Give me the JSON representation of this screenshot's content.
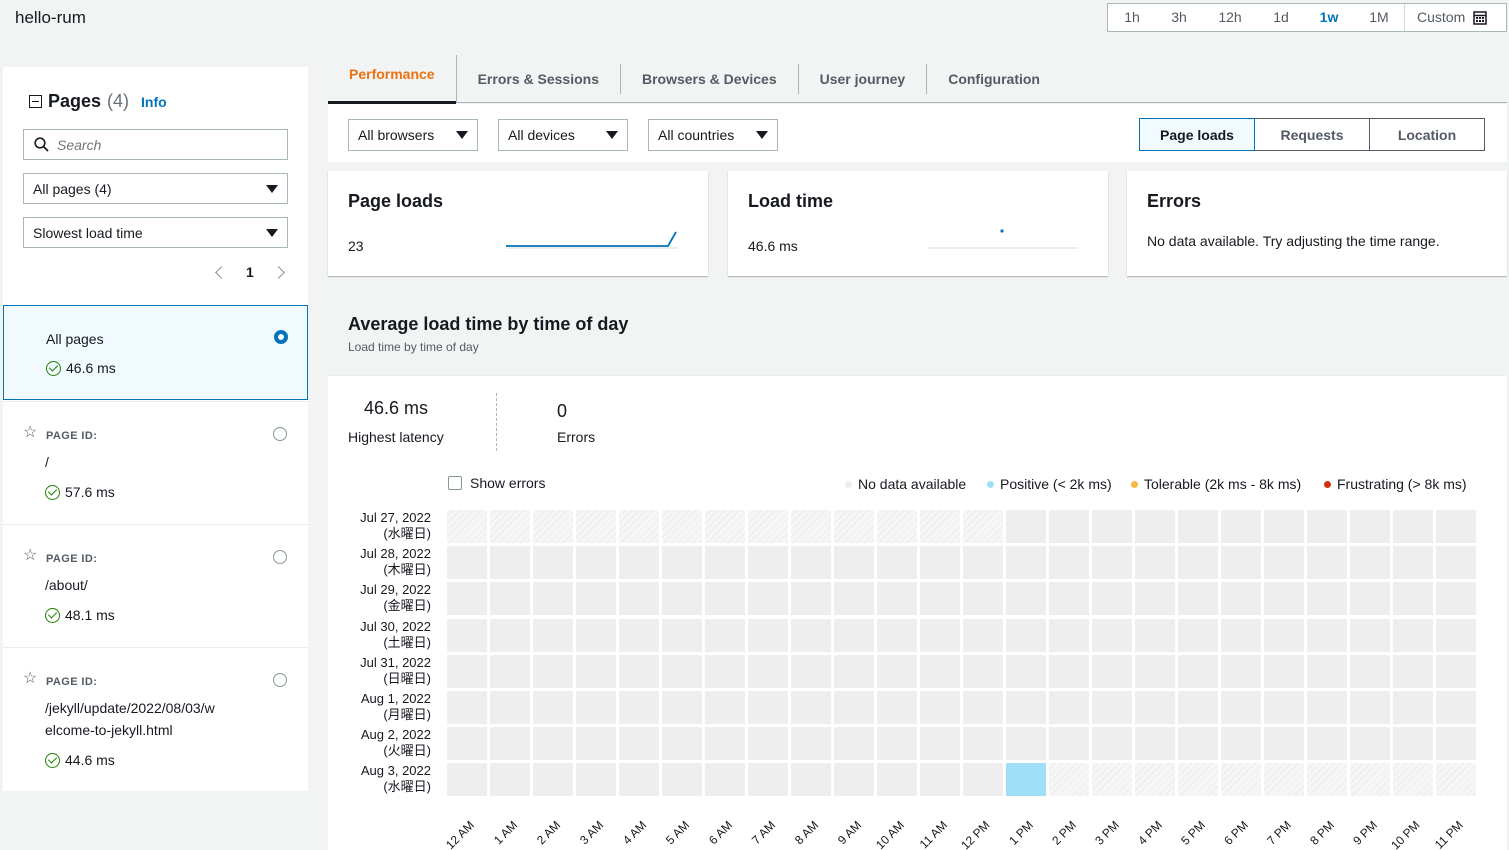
{
  "app": {
    "title": "hello-rum"
  },
  "time_range": {
    "options": [
      "1h",
      "3h",
      "12h",
      "1d",
      "1w",
      "1M"
    ],
    "selected": "1w",
    "custom_label": "Custom"
  },
  "sidebar": {
    "title": "Pages",
    "count": "(4)",
    "info": "Info",
    "search_placeholder": "Search",
    "page_filter": "All pages (4)",
    "sort": "Slowest load time",
    "page_number": "1",
    "items": [
      {
        "label": "All pages",
        "value": "46.6 ms",
        "selected": true
      },
      {
        "pid_label": "PAGE ID:",
        "label": "/",
        "value": "57.6 ms"
      },
      {
        "pid_label": "PAGE ID:",
        "label": "/about/",
        "value": "48.1 ms"
      },
      {
        "pid_label": "PAGE ID:",
        "label": "/jekyll/update/2022/08/03/w",
        "label2": "elcome-to-jekyll.html",
        "value": "44.6 ms"
      }
    ]
  },
  "tabs": [
    "Performance",
    "Errors & Sessions",
    "Browsers & Devices",
    "User journey",
    "Configuration"
  ],
  "active_tab": "Performance",
  "filters": {
    "browsers": "All browsers",
    "devices": "All devices",
    "countries": "All countries",
    "views": [
      "Page loads",
      "Requests",
      "Location"
    ],
    "active_view": "Page loads"
  },
  "cards": {
    "page_loads": {
      "title": "Page loads",
      "value": "23"
    },
    "load_time": {
      "title": "Load time",
      "value": "46.6 ms"
    },
    "errors": {
      "title": "Errors",
      "message": "No data available. Try adjusting the time range."
    }
  },
  "heatmap": {
    "title": "Average load time by time of day",
    "subtitle": "Load time by time of day",
    "highest_latency_value": "46.6 ms",
    "highest_latency_label": "Highest latency",
    "errors_value": "0",
    "errors_label": "Errors",
    "show_errors_label": "Show errors",
    "legend": [
      {
        "label": "No data available",
        "color": "#eaeded"
      },
      {
        "label": "Positive (< 2k ms)",
        "color": "#9fe0f8"
      },
      {
        "label": "Tolerable (2k ms - 8k ms)",
        "color": "#f5b943"
      },
      {
        "label": "Frustrating (> 8k ms)",
        "color": "#d13212"
      }
    ],
    "rows": [
      {
        "date": "Jul 27, 2022",
        "weekday": "(水曜日)"
      },
      {
        "date": "Jul 28, 2022",
        "weekday": "(木曜日)"
      },
      {
        "date": "Jul 29, 2022",
        "weekday": "(金曜日)"
      },
      {
        "date": "Jul 30, 2022",
        "weekday": "(土曜日)"
      },
      {
        "date": "Jul 31, 2022",
        "weekday": "(日曜日)"
      },
      {
        "date": "Aug 1, 2022",
        "weekday": "(月曜日)"
      },
      {
        "date": "Aug 2, 2022",
        "weekday": "(火曜日)"
      },
      {
        "date": "Aug 3, 2022",
        "weekday": "(水曜日)"
      }
    ],
    "hours": [
      "12 AM",
      "1 AM",
      "2 AM",
      "3 AM",
      "4 AM",
      "5 AM",
      "6 AM",
      "7 AM",
      "8 AM",
      "9 AM",
      "10 AM",
      "11 AM",
      "12 PM",
      "1 PM",
      "2 PM",
      "3 PM",
      "4 PM",
      "5 PM",
      "6 PM",
      "7 PM",
      "8 PM",
      "9 PM",
      "10 PM",
      "11 PM"
    ],
    "out_of_range_start": {
      "row": 0,
      "before_hour": 13
    },
    "out_of_range_end": {
      "row": 7,
      "after_hour": 13
    },
    "positive_cells": [
      {
        "row": 7,
        "hour": 13
      }
    ]
  }
}
